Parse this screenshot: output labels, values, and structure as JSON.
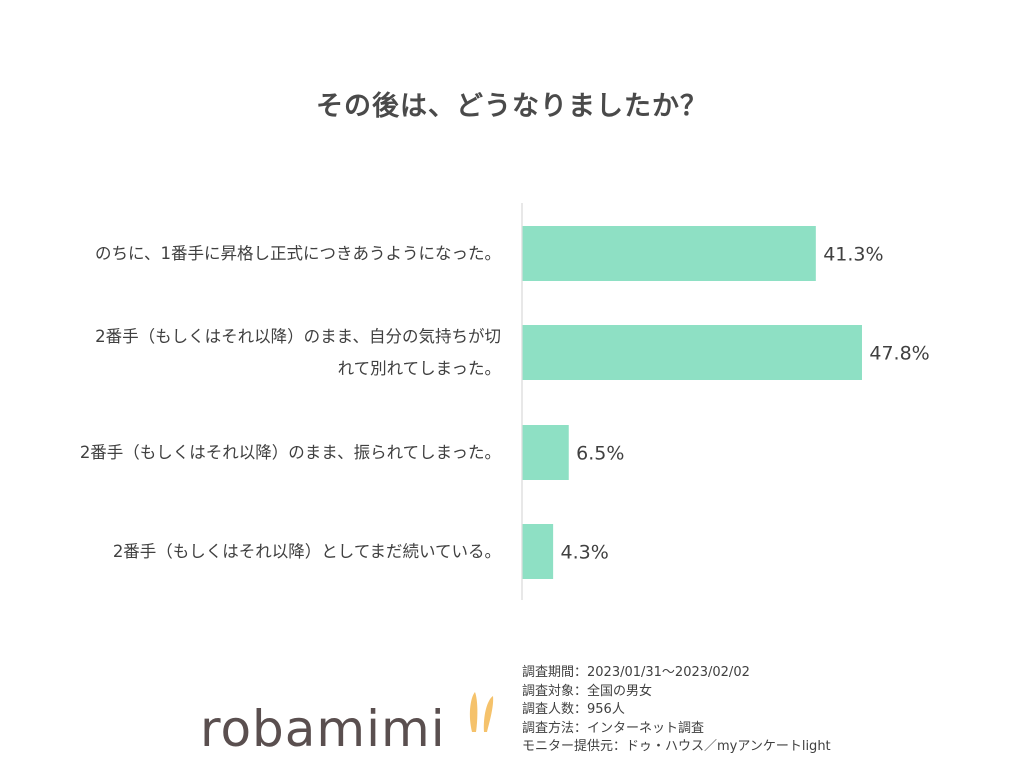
{
  "chart_data": {
    "type": "bar",
    "orientation": "horizontal",
    "title": "その後は、どうなりましたか？",
    "categories": [
      [
        "のちに、1番手に昇格し正式につきあうようになった。"
      ],
      [
        "2番手（もしくはそれ以降）のまま、自分の気持ちが切",
        "れて別れてしまった。"
      ],
      [
        "2番手（もしくはそれ以降）のまま、振られてしまった。"
      ],
      [
        "2番手（もしくはそれ以降）としてまだ続いている。"
      ]
    ],
    "values": [
      41.3,
      47.8,
      6.5,
      4.3
    ],
    "value_labels": [
      "41.3%",
      "47.8%",
      "6.5%",
      "4.3%"
    ],
    "xlim": [
      0,
      60
    ],
    "bar_color": "#8ee0c4",
    "axis_color": "#d9d9d9",
    "grid": false,
    "legend": "none"
  },
  "footer": {
    "logo_text": "robamimi",
    "survey_lines": [
      "調査期間：2023/01/31～2023/02/02",
      "調査対象：全国の男女",
      "調査人数：956人",
      "調査方法：インターネット調査",
      "モニター提供元：ドゥ・ハウス／myアンケートlight"
    ]
  },
  "colors": {
    "logo_ear": "#f5c26b",
    "logo_text": "#5a4f4f"
  }
}
